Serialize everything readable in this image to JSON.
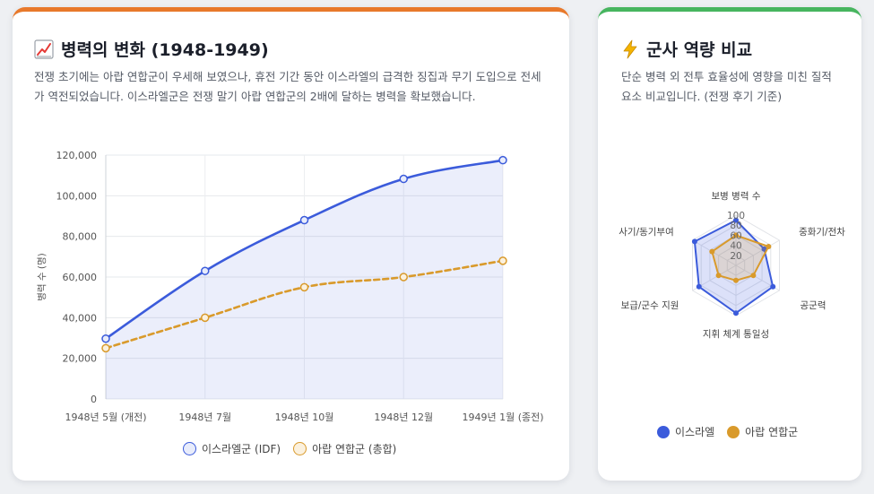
{
  "left_card": {
    "title": "병력의 변화 (1948-1949)",
    "title_icon": "chart-increasing-icon",
    "description": "전쟁 초기에는 아랍 연합군이 우세해 보였으나, 휴전 기간 동안 이스라엘의 급격한 징집과 무기 도입으로 전세가 역전되었습니다. 이스라엘군은 전쟁 말기 아랍 연합군의 2배에 달하는 병력을 확보했습니다.",
    "accent_color": "#e8792b"
  },
  "right_card": {
    "title": "군사 역량 비교",
    "title_icon": "lightning-icon",
    "description": "단순 병력 외 전투 효율성에 영향을 미친 질적 요소 비교입니다. (전쟁 후기 기준)",
    "accent_color": "#47b55f"
  },
  "chart_data": [
    {
      "type": "line",
      "categories": [
        "1948년 5월 (개전)",
        "1948년 7월",
        "1948년 10월",
        "1948년 12월",
        "1949년 1월 (종전)"
      ],
      "series": [
        {
          "name": "이스라엘군 (IDF)",
          "values": [
            29677,
            63000,
            88000,
            108300,
            117500
          ],
          "color": "#3b5bdb",
          "style": "solid",
          "fill": true
        },
        {
          "name": "아랍 연합군 (총합)",
          "values": [
            25000,
            40000,
            55000,
            60000,
            68000
          ],
          "color": "#d99a2b",
          "style": "dashed",
          "fill": false
        }
      ],
      "ylabel": "병력 수 (명)",
      "ylim": [
        0,
        120000
      ],
      "yticks": [
        0,
        20000,
        40000,
        60000,
        80000,
        100000,
        120000
      ],
      "ytick_labels": [
        "0",
        "20,000",
        "40,000",
        "60,000",
        "80,000",
        "100,000",
        "120,000"
      ],
      "legend_position": "bottom"
    },
    {
      "type": "radar",
      "axes": [
        "보병 병력 수",
        "중화기/전차",
        "공군력",
        "지휘 체계 통일성",
        "보급/군수 지원",
        "사기/동기부여"
      ],
      "series": [
        {
          "name": "이스라엘",
          "values": [
            90,
            65,
            85,
            95,
            85,
            95
          ],
          "color": "#3b5bdb"
        },
        {
          "name": "아랍 연합군",
          "values": [
            60,
            75,
            40,
            30,
            40,
            55
          ],
          "color": "#d99a2b"
        }
      ],
      "rlim": [
        0,
        100
      ],
      "rticks": [
        "20",
        "40",
        "60",
        "80",
        "100"
      ],
      "legend_position": "bottom"
    }
  ]
}
